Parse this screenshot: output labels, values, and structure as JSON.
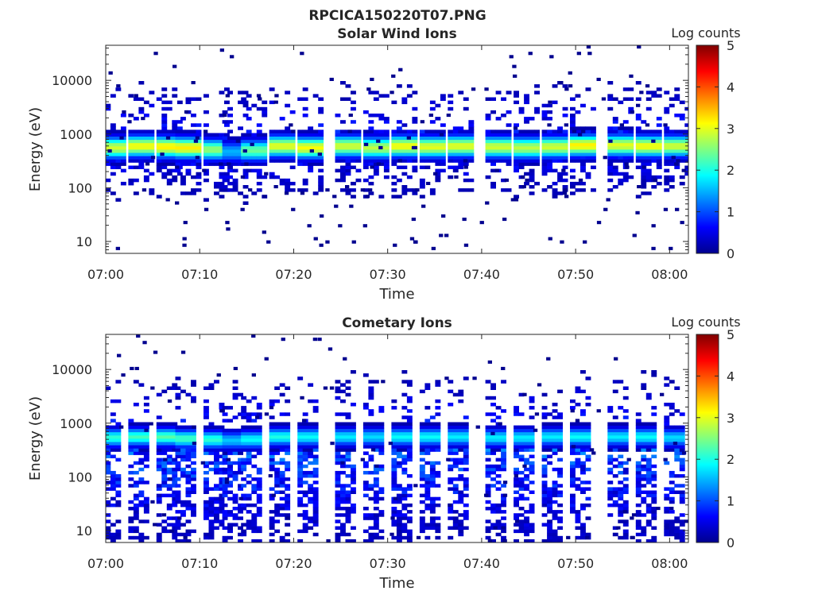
{
  "figure_title": "RPCICA150220T07.PNG",
  "colormap": [
    "#00008f",
    "#0000ff",
    "#0080ff",
    "#00ffff",
    "#80ff80",
    "#ffff00",
    "#ff8000",
    "#ff0000",
    "#800000"
  ],
  "chart_data": [
    {
      "type": "heatmap",
      "title": "Solar Wind Ions",
      "xlabel": "Time",
      "ylabel": "Energy (eV)",
      "x_range": [
        "07:00",
        "08:02"
      ],
      "x_ticks": [
        "07:00",
        "07:10",
        "07:20",
        "07:30",
        "07:40",
        "07:50",
        "08:00"
      ],
      "y_scale": "log",
      "y_range": [
        6,
        45000
      ],
      "y_ticks": [
        10,
        100,
        1000,
        10000
      ],
      "y_tick_labels": [
        "10",
        "100",
        "1000",
        "10000"
      ],
      "grid": false,
      "colorbar": {
        "label": "Log counts",
        "range": [
          0,
          5
        ],
        "ticks": [
          "0",
          "1",
          "2",
          "3",
          "4",
          "5"
        ]
      },
      "events": [
        {
          "t": "07:00",
          "e": 560,
          "peak": 2.9
        },
        {
          "t": "07:03",
          "e": 600,
          "peak": 3.1
        },
        {
          "t": "07:06",
          "e": 580,
          "peak": 3.2
        },
        {
          "t": "07:08",
          "e": 560,
          "peak": 3.2
        },
        {
          "t": "07:11",
          "e": 520,
          "peak": 2.6
        },
        {
          "t": "07:13",
          "e": 470,
          "peak": 1.5
        },
        {
          "t": "07:15",
          "e": 500,
          "peak": 2.4
        },
        {
          "t": "07:18",
          "e": 600,
          "peak": 3.0
        },
        {
          "t": "07:21",
          "e": 560,
          "peak": 3.1
        },
        {
          "t": "07:25",
          "e": 600,
          "peak": 2.9
        },
        {
          "t": "07:28",
          "e": 560,
          "peak": 2.8
        },
        {
          "t": "07:31",
          "e": 600,
          "peak": 3.1
        },
        {
          "t": "07:34",
          "e": 580,
          "peak": 3.0
        },
        {
          "t": "07:37",
          "e": 600,
          "peak": 3.0
        },
        {
          "t": "07:41",
          "e": 580,
          "peak": 2.9
        },
        {
          "t": "07:44",
          "e": 560,
          "peak": 2.8
        },
        {
          "t": "07:47",
          "e": 580,
          "peak": 2.9
        },
        {
          "t": "07:50",
          "e": 620,
          "peak": 3.2
        },
        {
          "t": "07:54",
          "e": 620,
          "peak": 3.0
        },
        {
          "t": "07:57",
          "e": 600,
          "peak": 3.1
        },
        {
          "t": "08:00",
          "e": 600,
          "peak": 2.9
        }
      ]
    },
    {
      "type": "heatmap",
      "title": "Cometary Ions",
      "xlabel": "Time",
      "ylabel": "Energy (eV)",
      "x_range": [
        "07:00",
        "08:02"
      ],
      "x_ticks": [
        "07:00",
        "07:10",
        "07:20",
        "07:30",
        "07:40",
        "07:50",
        "08:00"
      ],
      "y_scale": "log",
      "y_range": [
        6,
        45000
      ],
      "y_ticks": [
        10,
        100,
        1000,
        10000
      ],
      "y_tick_labels": [
        "10",
        "100",
        "1000",
        "10000"
      ],
      "grid": false,
      "colorbar": {
        "label": "Log counts",
        "range": [
          0,
          5
        ],
        "ticks": [
          "0",
          "1",
          "2",
          "3",
          "4",
          "5"
        ]
      },
      "events": [
        {
          "t": "07:00",
          "e": 540,
          "peak": 2.1
        },
        {
          "t": "07:03",
          "e": 560,
          "peak": 2.2
        },
        {
          "t": "07:06",
          "e": 560,
          "peak": 2.3
        },
        {
          "t": "07:08",
          "e": 520,
          "peak": 2.2
        },
        {
          "t": "07:11",
          "e": 500,
          "peak": 2.1
        },
        {
          "t": "07:13",
          "e": 480,
          "peak": 1.6
        },
        {
          "t": "07:15",
          "e": 500,
          "peak": 1.9
        },
        {
          "t": "07:18",
          "e": 560,
          "peak": 2.0
        },
        {
          "t": "07:21",
          "e": 560,
          "peak": 1.9
        },
        {
          "t": "07:25",
          "e": 560,
          "peak": 1.8
        },
        {
          "t": "07:28",
          "e": 560,
          "peak": 1.7
        },
        {
          "t": "07:31",
          "e": 560,
          "peak": 1.9
        },
        {
          "t": "07:34",
          "e": 560,
          "peak": 1.9
        },
        {
          "t": "07:37",
          "e": 560,
          "peak": 1.8
        },
        {
          "t": "07:41",
          "e": 540,
          "peak": 1.8
        },
        {
          "t": "07:44",
          "e": 540,
          "peak": 1.8
        },
        {
          "t": "07:47",
          "e": 560,
          "peak": 1.8
        },
        {
          "t": "07:50",
          "e": 560,
          "peak": 1.9
        },
        {
          "t": "07:54",
          "e": 560,
          "peak": 1.8
        },
        {
          "t": "07:57",
          "e": 560,
          "peak": 1.9
        },
        {
          "t": "08:00",
          "e": 540,
          "peak": 1.7
        }
      ]
    }
  ]
}
